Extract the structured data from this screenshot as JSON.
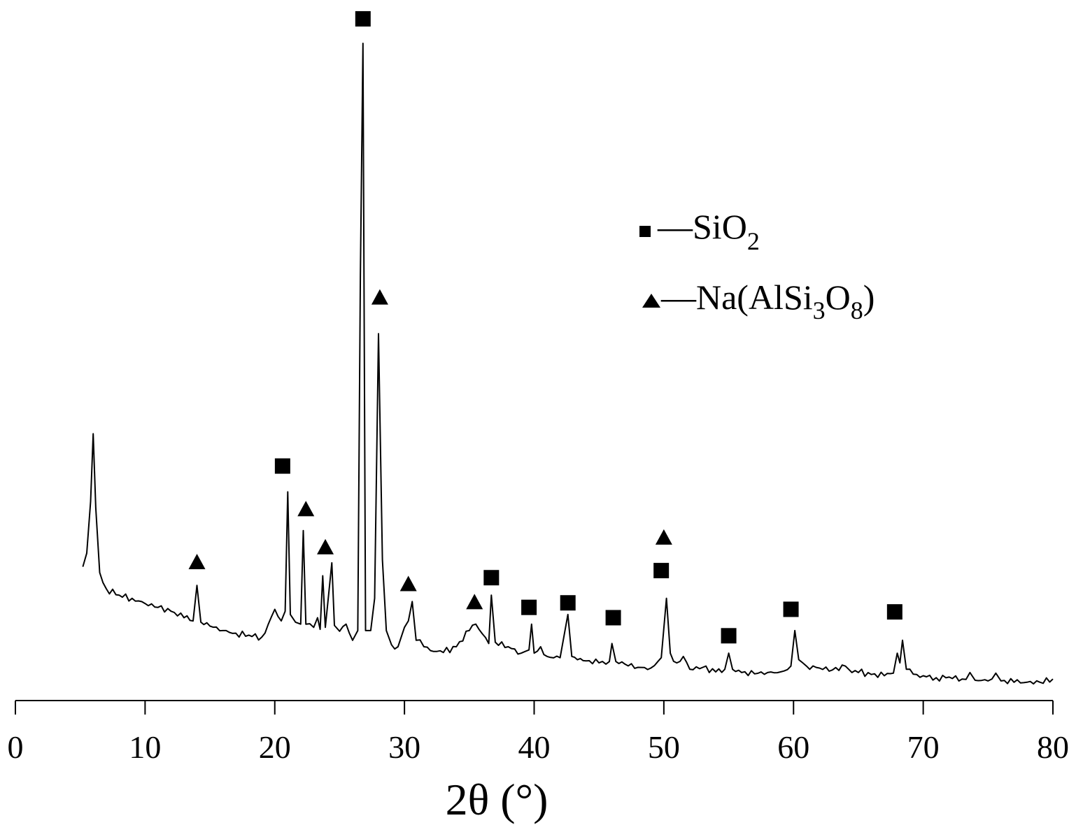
{
  "chart_data": {
    "type": "line",
    "title": "",
    "xlabel": "2θ (°)",
    "ylabel": "",
    "xlim": [
      0,
      80
    ],
    "ylim": [
      0,
      100
    ],
    "grid": false,
    "legend_position": "top-right",
    "x_ticks": [
      "0",
      "10",
      "20",
      "30",
      "40",
      "50",
      "60",
      "70",
      "80"
    ],
    "series": [
      {
        "color": "#000000",
        "points": [
          [
            5.2,
            18.9
          ],
          [
            5.5,
            21.0
          ],
          [
            5.8,
            29.0
          ],
          [
            6.0,
            39.5
          ],
          [
            6.2,
            28.0
          ],
          [
            6.5,
            18.0
          ],
          [
            7.0,
            15.5
          ],
          [
            8.0,
            14.5
          ],
          [
            9.0,
            14.0
          ],
          [
            10.0,
            13.2
          ],
          [
            11.0,
            12.6
          ],
          [
            12.0,
            12.0
          ],
          [
            13.0,
            11.0
          ],
          [
            13.7,
            10.5
          ],
          [
            14.0,
            16.0
          ],
          [
            14.3,
            10.3
          ],
          [
            15.0,
            9.7
          ],
          [
            16.0,
            9.0
          ],
          [
            17.0,
            8.6
          ],
          [
            18.0,
            8.3
          ],
          [
            19.0,
            8.0
          ],
          [
            19.5,
            10.0
          ],
          [
            20.0,
            12.3
          ],
          [
            20.5,
            10.5
          ],
          [
            20.8,
            12.0
          ],
          [
            21.0,
            30.5
          ],
          [
            21.2,
            11.5
          ],
          [
            21.6,
            10.3
          ],
          [
            22.0,
            10.0
          ],
          [
            22.2,
            24.5
          ],
          [
            22.4,
            10.0
          ],
          [
            23.0,
            9.5
          ],
          [
            23.3,
            11.0
          ],
          [
            23.5,
            9.2
          ],
          [
            23.7,
            17.5
          ],
          [
            23.9,
            9.5
          ],
          [
            24.2,
            15.5
          ],
          [
            24.4,
            19.5
          ],
          [
            24.6,
            9.8
          ],
          [
            25.0,
            8.9
          ],
          [
            25.5,
            10.0
          ],
          [
            26.0,
            7.5
          ],
          [
            26.4,
            9.0
          ],
          [
            26.6,
            64.0
          ],
          [
            26.8,
            100.0
          ],
          [
            27.0,
            9.0
          ],
          [
            27.4,
            9.0
          ],
          [
            27.7,
            14.0
          ],
          [
            28.0,
            55.0
          ],
          [
            28.3,
            20.0
          ],
          [
            28.6,
            9.0
          ],
          [
            29.0,
            6.8
          ],
          [
            29.5,
            6.5
          ],
          [
            30.0,
            9.5
          ],
          [
            30.3,
            10.5
          ],
          [
            30.6,
            13.5
          ],
          [
            30.9,
            7.5
          ],
          [
            31.5,
            6.5
          ],
          [
            32.0,
            5.9
          ],
          [
            33.0,
            5.6
          ],
          [
            34.0,
            6.5
          ],
          [
            35.0,
            9.0
          ],
          [
            35.5,
            10.0
          ],
          [
            36.0,
            8.5
          ],
          [
            36.5,
            7.0
          ],
          [
            36.7,
            14.5
          ],
          [
            37.0,
            7.2
          ],
          [
            38.0,
            6.5
          ],
          [
            39.0,
            5.5
          ],
          [
            39.6,
            6.0
          ],
          [
            39.8,
            10.0
          ],
          [
            40.0,
            5.5
          ],
          [
            40.5,
            6.5
          ],
          [
            41.0,
            5.0
          ],
          [
            42.0,
            4.8
          ],
          [
            42.6,
            11.5
          ],
          [
            42.9,
            5.0
          ],
          [
            44.0,
            4.3
          ],
          [
            45.0,
            4.0
          ],
          [
            45.8,
            4.2
          ],
          [
            46.0,
            7.0
          ],
          [
            46.3,
            4.2
          ],
          [
            47.0,
            3.8
          ],
          [
            48.0,
            3.3
          ],
          [
            49.0,
            3.2
          ],
          [
            49.8,
            4.8
          ],
          [
            50.2,
            14.0
          ],
          [
            50.5,
            5.5
          ],
          [
            51.0,
            4.0
          ],
          [
            51.5,
            5.0
          ],
          [
            52.0,
            3.0
          ],
          [
            53.0,
            3.3
          ],
          [
            54.0,
            2.6
          ],
          [
            54.7,
            3.0
          ],
          [
            55.0,
            5.5
          ],
          [
            55.3,
            3.0
          ],
          [
            56.0,
            2.5
          ],
          [
            57.0,
            2.3
          ],
          [
            58.0,
            2.5
          ],
          [
            59.0,
            2.6
          ],
          [
            59.8,
            3.5
          ],
          [
            60.1,
            9.0
          ],
          [
            60.4,
            4.5
          ],
          [
            61.0,
            3.5
          ],
          [
            62.0,
            3.2
          ],
          [
            63.0,
            2.9
          ],
          [
            64.0,
            3.5
          ],
          [
            64.5,
            2.5
          ],
          [
            65.0,
            2.5
          ],
          [
            66.0,
            2.2
          ],
          [
            67.0,
            2.0
          ],
          [
            67.7,
            2.4
          ],
          [
            68.0,
            5.5
          ],
          [
            68.2,
            4.0
          ],
          [
            68.4,
            7.5
          ],
          [
            68.7,
            3.0
          ],
          [
            69.5,
            2.2
          ],
          [
            70.0,
            2.0
          ],
          [
            71.0,
            1.7
          ],
          [
            72.0,
            1.8
          ],
          [
            73.0,
            1.5
          ],
          [
            73.6,
            2.5
          ],
          [
            74.0,
            1.3
          ],
          [
            75.0,
            1.2
          ],
          [
            75.6,
            2.4
          ],
          [
            76.0,
            1.2
          ],
          [
            77.0,
            1.0
          ],
          [
            78.0,
            1.0
          ],
          [
            79.0,
            1.0
          ],
          [
            80.0,
            1.5
          ]
        ]
      }
    ],
    "markers": {
      "SiO2": [
        [
          20.6,
          34.5
        ],
        [
          26.8,
          103.8
        ],
        [
          36.7,
          17.2
        ],
        [
          39.6,
          12.6
        ],
        [
          42.6,
          13.3
        ],
        [
          46.1,
          11.0
        ],
        [
          49.8,
          18.3
        ],
        [
          55.0,
          8.2
        ],
        [
          59.8,
          12.3
        ],
        [
          67.8,
          11.9
        ]
      ],
      "NaAlSi3O8": [
        [
          14.0,
          19.6
        ],
        [
          22.4,
          27.8
        ],
        [
          23.9,
          21.9
        ],
        [
          30.3,
          16.2
        ],
        [
          35.4,
          13.4
        ],
        [
          50.0,
          23.4
        ],
        [
          28.1,
          60.6
        ]
      ]
    },
    "legend": [
      {
        "marker": "square",
        "text": "—SiO",
        "subscript": "2",
        "suffix": ""
      },
      {
        "marker": "triangle",
        "text": "—Na(AlSi",
        "subscript": "3",
        "middle": "O",
        "subscript2": "8",
        "suffix": ")"
      }
    ]
  }
}
